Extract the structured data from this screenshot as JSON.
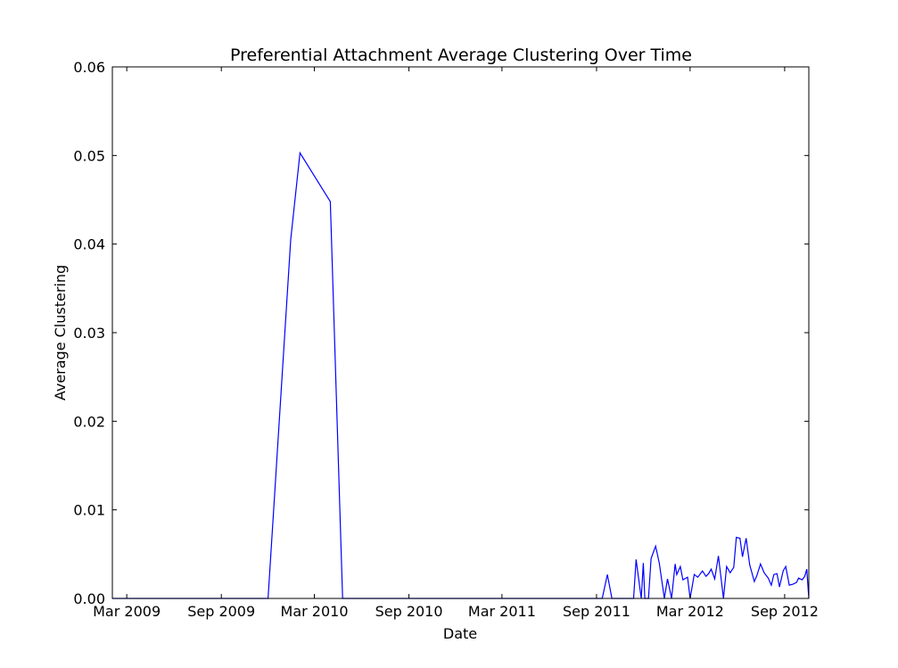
{
  "chart_data": {
    "type": "line",
    "title": "Preferential Attachment Average Clustering Over Time",
    "xlabel": "Date",
    "ylabel": "Average Clustering",
    "x_axis_type": "date",
    "xlim": [
      "2009-02-01",
      "2012-10-18"
    ],
    "ylim": [
      0,
      0.06
    ],
    "y_ticks": [
      0.0,
      0.01,
      0.02,
      0.03,
      0.04,
      0.05,
      0.06
    ],
    "y_tick_labels": [
      "0.00",
      "0.01",
      "0.02",
      "0.03",
      "0.04",
      "0.05",
      "0.06"
    ],
    "x_ticks": [
      "2009-03-01",
      "2009-09-01",
      "2010-03-01",
      "2010-09-01",
      "2011-03-01",
      "2011-09-01",
      "2012-03-01",
      "2012-09-01"
    ],
    "x_tick_labels": [
      "Mar 2009",
      "Sep 2009",
      "Mar 2010",
      "Sep 2010",
      "Mar 2011",
      "Sep 2011",
      "Mar 2012",
      "Sep 2012"
    ],
    "grid": false,
    "line_color": "#0000ff",
    "series": [
      {
        "x": [
          "2009-02-01",
          "2009-12-01",
          "2010-01-14",
          "2010-02-01",
          "2010-04-01",
          "2010-04-25",
          "2011-09-12",
          "2011-09-22",
          "2011-10-01",
          "2011-11-12",
          "2011-11-17",
          "2011-11-27",
          "2011-12-01",
          "2011-12-04",
          "2011-12-11",
          "2011-12-16",
          "2011-12-25",
          "2012-01-01",
          "2012-01-11",
          "2012-01-17",
          "2012-01-25",
          "2012-02-01",
          "2012-02-04",
          "2012-02-11",
          "2012-02-16",
          "2012-02-25",
          "2012-03-01",
          "2012-03-09",
          "2012-03-16",
          "2012-03-25",
          "2012-04-01",
          "2012-04-06",
          "2012-04-11",
          "2012-04-18",
          "2012-04-25",
          "2012-05-05",
          "2012-05-11",
          "2012-05-18",
          "2012-05-25",
          "2012-05-30",
          "2012-06-06",
          "2012-06-11",
          "2012-06-18",
          "2012-06-25",
          "2012-07-04",
          "2012-07-09",
          "2012-07-16",
          "2012-07-23",
          "2012-07-31",
          "2012-08-06",
          "2012-08-11",
          "2012-08-17",
          "2012-08-22",
          "2012-08-29",
          "2012-09-03",
          "2012-09-10",
          "2012-09-17",
          "2012-09-24",
          "2012-09-28",
          "2012-10-05",
          "2012-10-10",
          "2012-10-14",
          "2012-10-18",
          "2012-10-18"
        ],
        "y": [
          0.0,
          0.0,
          0.0405,
          0.0503,
          0.0448,
          0.0,
          0.0,
          0.0027,
          0.0,
          0.0,
          0.0044,
          0.0,
          0.004,
          0.0,
          0.0,
          0.0045,
          0.0059,
          0.004,
          0.0,
          0.0022,
          0.0,
          0.0039,
          0.0027,
          0.0036,
          0.0021,
          0.0024,
          0.0,
          0.0027,
          0.0024,
          0.0031,
          0.0025,
          0.0028,
          0.0033,
          0.0022,
          0.0048,
          0.0,
          0.0036,
          0.0029,
          0.0035,
          0.0069,
          0.0068,
          0.0047,
          0.0068,
          0.0038,
          0.0019,
          0.0026,
          0.0039,
          0.0029,
          0.0023,
          0.0015,
          0.0027,
          0.0028,
          0.0013,
          0.0031,
          0.0036,
          0.0015,
          0.0016,
          0.0018,
          0.0023,
          0.0021,
          0.0025,
          0.0033,
          0.0,
          0.0
        ]
      }
    ]
  }
}
